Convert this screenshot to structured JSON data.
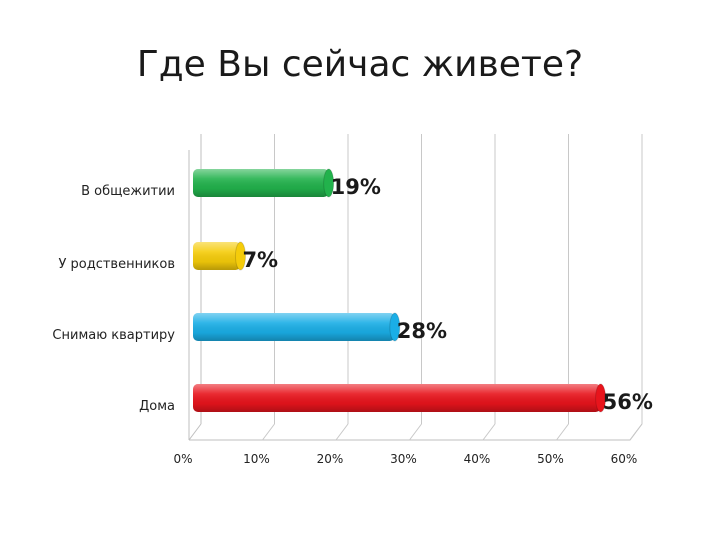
{
  "chart_data": {
    "type": "bar",
    "orientation": "horizontal",
    "title": "Где Вы сейчас живете?",
    "categories": [
      "Дома",
      "Снимаю квартиру",
      "У родственников",
      "В общежитии"
    ],
    "values": [
      56,
      28,
      7,
      19
    ],
    "data_labels": [
      "56%",
      "28%",
      "7%",
      "19%"
    ],
    "bar_colors": [
      "#e8141c",
      "#1aaee6",
      "#f5cc0a",
      "#22b24c"
    ],
    "x_ticks": [
      "0%",
      "10%",
      "20%",
      "30%",
      "40%",
      "50%",
      "60%"
    ],
    "xlim": [
      0,
      60
    ],
    "grid": true,
    "legend": "none"
  }
}
